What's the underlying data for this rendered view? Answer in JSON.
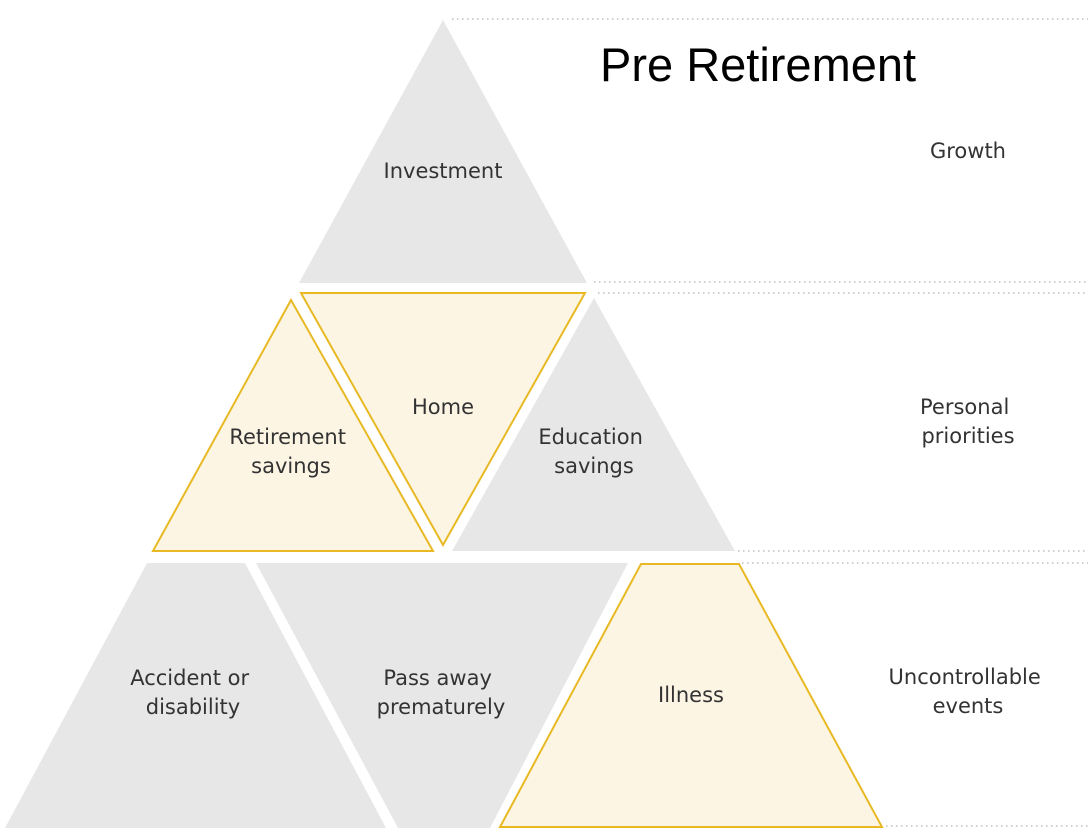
{
  "title": "Pre Retirement",
  "colors": {
    "gray_fill": "#e7e7e7",
    "highlight_fill": "#fcf5e4",
    "highlight_stroke": "#e8b923",
    "divider": "#bdbdbd",
    "text": "#333333"
  },
  "tiers": {
    "growth": {
      "label": [
        "Growth"
      ]
    },
    "personal": {
      "label": [
        "Personal",
        "priorities"
      ]
    },
    "uncontrollable": {
      "label": [
        "Uncontrollable",
        "events"
      ]
    }
  },
  "shapes": {
    "investment": {
      "label": [
        "Investment"
      ],
      "highlighted": false
    },
    "retirement_savings": {
      "label": [
        "Retirement",
        "savings"
      ],
      "highlighted": true
    },
    "home": {
      "label": [
        "Home"
      ],
      "highlighted": true
    },
    "education_savings": {
      "label": [
        "Education",
        "savings"
      ],
      "highlighted": false
    },
    "accident_or_disability": {
      "label": [
        "Accident or",
        "disability"
      ],
      "highlighted": false
    },
    "pass_away_prematurely": {
      "label": [
        "Pass away",
        "prematurely"
      ],
      "highlighted": false
    },
    "illness": {
      "label": [
        "Illness"
      ],
      "highlighted": true
    }
  }
}
